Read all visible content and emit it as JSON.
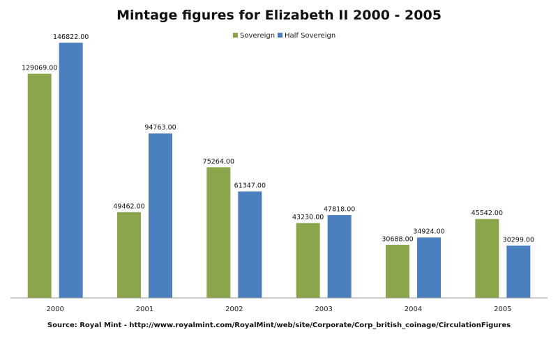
{
  "chart_data": {
    "type": "bar",
    "title": "Mintage figures for Elizabeth II 2000 - 2005",
    "categories": [
      "2000",
      "2001",
      "2002",
      "2003",
      "2004",
      "2005"
    ],
    "series": [
      {
        "name": "Sovereign",
        "color": "#8aa54a",
        "values": [
          129069.0,
          49462.0,
          75264.0,
          43230.0,
          30688.0,
          45542.0
        ],
        "labels": [
          "129069.00",
          "49462.00",
          "75264.00",
          "43230.00",
          "30688.00",
          "45542.00"
        ]
      },
      {
        "name": "Half Sovereign",
        "color": "#4a7fc0",
        "values": [
          146822.0,
          94763.0,
          61347.0,
          47818.0,
          34924.0,
          30299.0
        ],
        "labels": [
          "146822.00",
          "94763.00",
          "61347.00",
          "47818.00",
          "34924.00",
          "30299.00"
        ]
      }
    ],
    "ylim": [
      0,
      160000
    ],
    "grid": false,
    "legend_position": "top"
  },
  "source_text": "Source: Royal Mint - http://www.royalmint.com/RoyalMint/web/site/Corporate/Corp_british_coinage/CirculationFigures"
}
